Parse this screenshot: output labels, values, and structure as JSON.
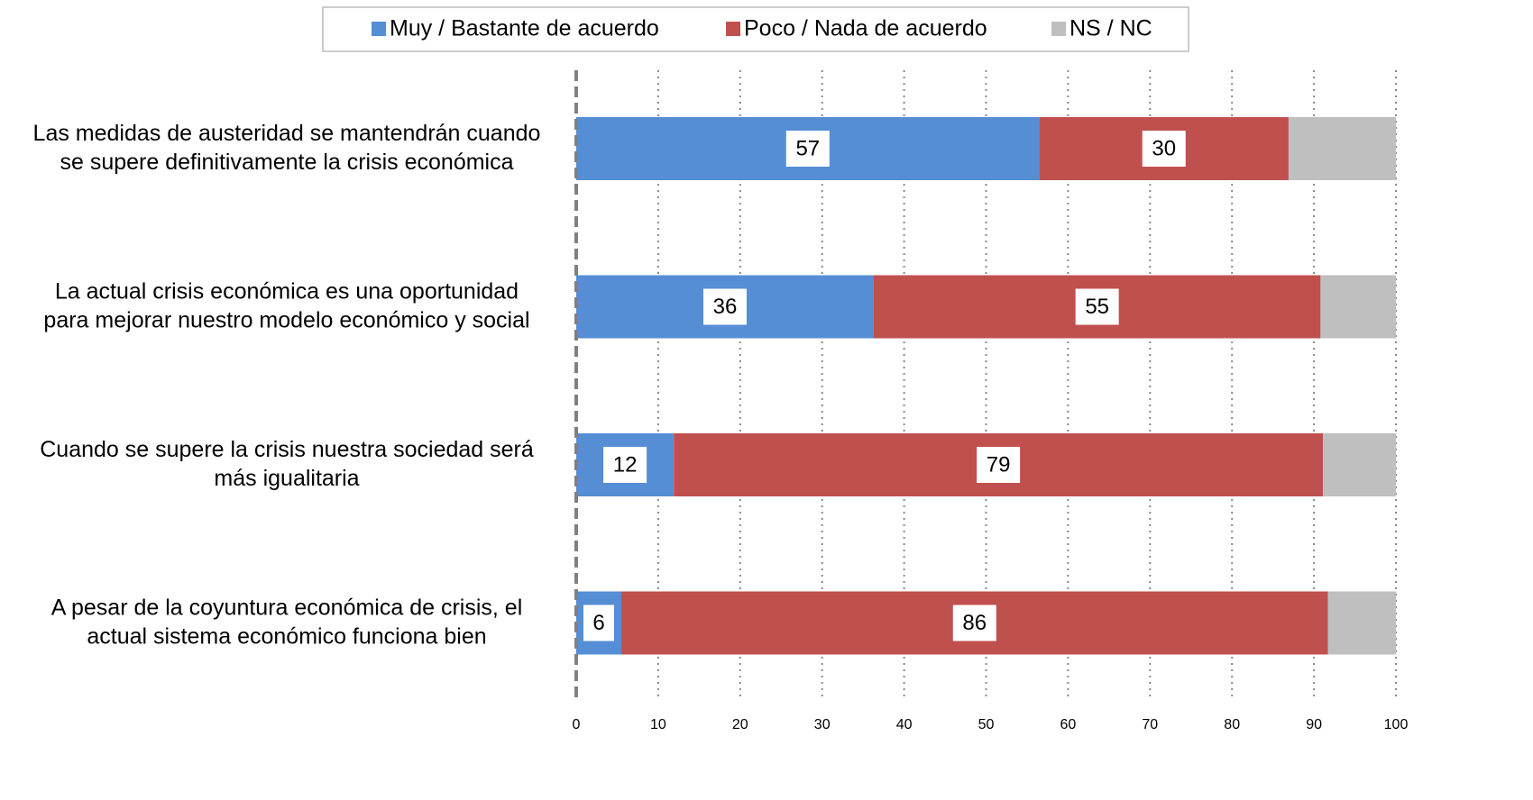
{
  "chart_data": {
    "type": "stacked_barh",
    "categories": [
      "Las medidas de austeridad se mantendrán cuando\nse supere definitivamente la crisis económica",
      "La actual crisis económica es una oportunidad\npara mejorar nuestro modelo económico y social",
      "Cuando se supere la crisis nuestra sociedad será\nmás igualitaria",
      "A pesar de la coyuntura  económica de crisis, el\nactual sistema económico funciona  bien"
    ],
    "series": [
      {
        "name": "Muy / Bastante de acuerdo",
        "color": "#558ed5",
        "values": [
          56.5,
          36.3,
          11.9,
          5.5
        ],
        "value_labels": [
          "57",
          "36",
          "12",
          "6"
        ]
      },
      {
        "name": "Poco / Nada de acuerdo",
        "color": "#c0504d",
        "values": [
          30.4,
          54.5,
          79.2,
          86.2
        ],
        "value_labels": [
          "30",
          "55",
          "79",
          "86"
        ]
      },
      {
        "name": "NS / NC",
        "color": "#bfbfbf",
        "values": [
          13.1,
          9.2,
          8.9,
          8.3
        ]
      }
    ],
    "xlim": [
      0,
      100
    ],
    "xticks": [
      0,
      10,
      20,
      30,
      40,
      50,
      60,
      70,
      80,
      90,
      100
    ],
    "grid": true,
    "legend": "top"
  }
}
